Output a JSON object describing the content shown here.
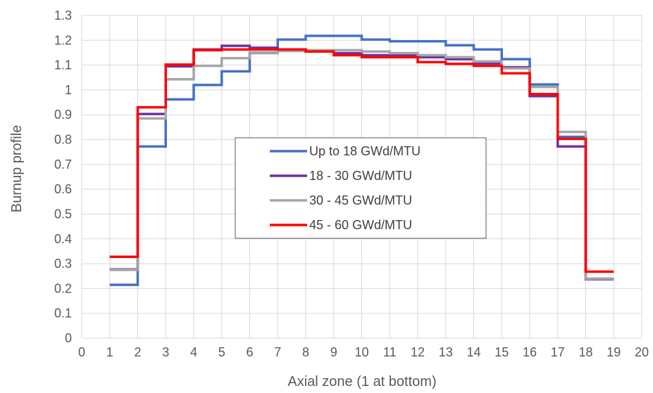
{
  "chart_data": {
    "type": "line",
    "step": true,
    "title": "",
    "xlabel": "Axial zone (1 at bottom)",
    "ylabel": "Burnup profile",
    "xlim": [
      0,
      20
    ],
    "ylim": [
      0,
      1.3
    ],
    "xticks": [
      0,
      1,
      2,
      3,
      4,
      5,
      6,
      7,
      8,
      9,
      10,
      11,
      12,
      13,
      14,
      15,
      16,
      17,
      18,
      19,
      20
    ],
    "yticks": [
      0,
      0.1,
      0.2,
      0.3,
      0.4,
      0.5,
      0.6,
      0.7,
      0.8,
      0.9,
      1,
      1.1,
      1.2,
      1.3
    ],
    "grid": true,
    "legend_position": "center",
    "x": [
      1,
      2,
      3,
      4,
      5,
      6,
      7,
      8,
      9,
      10,
      11,
      12,
      13,
      14,
      15,
      16,
      17,
      18,
      19
    ],
    "series": [
      {
        "name": "Up to 18 GWd/MTU",
        "color": "#4472c4",
        "values": [
          0.215,
          0.772,
          0.962,
          1.02,
          1.075,
          1.15,
          1.203,
          1.218,
          1.218,
          1.203,
          1.196,
          1.196,
          1.18,
          1.163,
          1.124,
          1.022,
          0.811,
          0.238,
          0.238
        ]
      },
      {
        "name": "18 - 30 GWd/MTU",
        "color": "#7030a0",
        "values": [
          0.277,
          0.903,
          1.095,
          1.163,
          1.178,
          1.17,
          1.163,
          1.155,
          1.148,
          1.14,
          1.14,
          1.132,
          1.124,
          1.107,
          1.091,
          0.975,
          0.772,
          0.238,
          0.238
        ]
      },
      {
        "name": "30 - 45 GWd/MTU",
        "color": "#a5a5a5",
        "values": [
          0.275,
          0.885,
          1.043,
          1.097,
          1.128,
          1.148,
          1.157,
          1.16,
          1.16,
          1.155,
          1.148,
          1.14,
          1.132,
          1.115,
          1.087,
          1.012,
          0.831,
          0.24,
          0.24
        ]
      },
      {
        "name": "45 - 60 GWd/MTU",
        "color": "#ff0000",
        "values": [
          0.328,
          0.93,
          1.102,
          1.16,
          1.163,
          1.163,
          1.163,
          1.155,
          1.14,
          1.132,
          1.132,
          1.112,
          1.105,
          1.097,
          1.067,
          0.983,
          0.803,
          0.268,
          0.268
        ]
      }
    ]
  }
}
